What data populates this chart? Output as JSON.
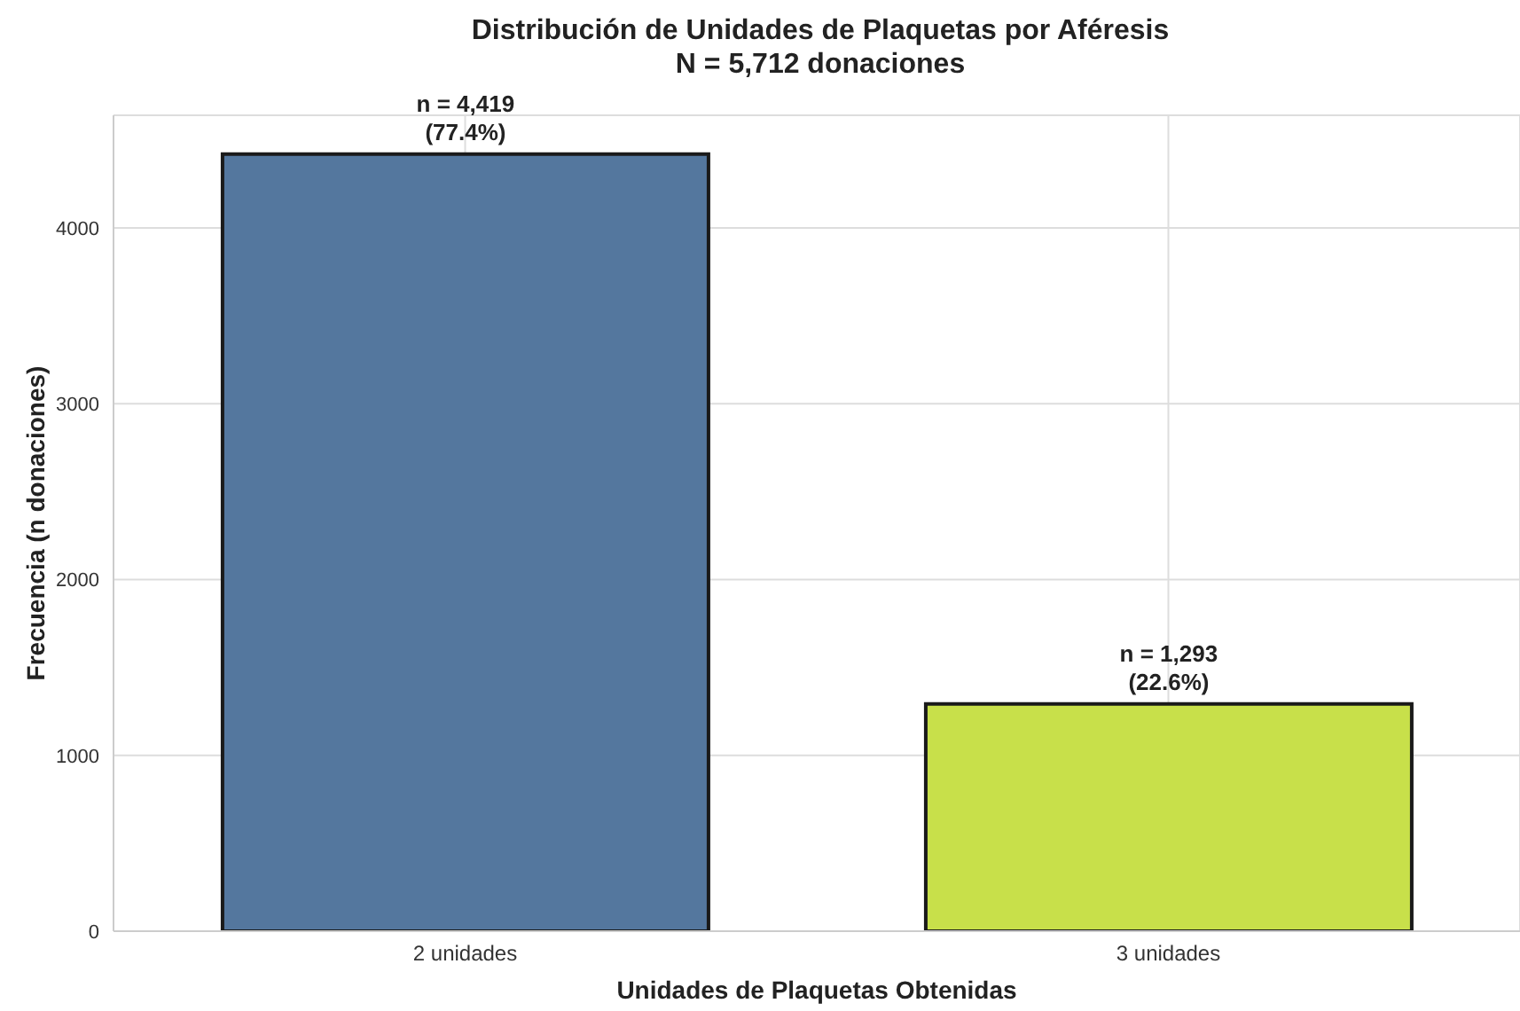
{
  "chart_data": {
    "type": "bar",
    "title": "Distribución de Unidades de Plaquetas por Aféresis",
    "subtitle": "N = 5,712 donaciones",
    "xlabel": "Unidades de Plaquetas Obtenidas",
    "ylabel": "Frecuencia (n donaciones)",
    "categories": [
      "2 unidades",
      "3 unidades"
    ],
    "values": [
      4419,
      1293
    ],
    "colors": [
      "#54779e",
      "#c8e04a"
    ],
    "value_labels": [
      "n = 4,419\n(77.4%)",
      "n = 1,293\n(22.6%)"
    ],
    "ylim": [
      0,
      4640
    ],
    "yticks": [
      0,
      1000,
      2000,
      3000,
      4000
    ],
    "grid": true
  }
}
